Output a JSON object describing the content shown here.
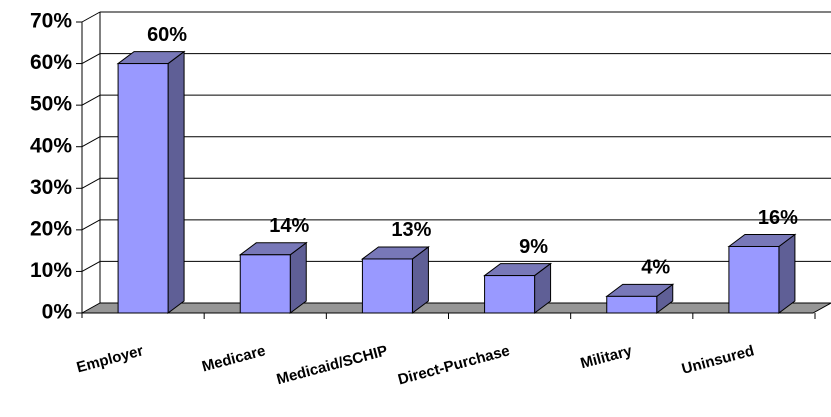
{
  "chart_data": {
    "type": "bar3d",
    "categories": [
      "Employer",
      "Medicare",
      "Medicaid/SCHIP",
      "Direct-Purchase",
      "Military",
      "Uninsured"
    ],
    "values": [
      60,
      14,
      13,
      9,
      4,
      16
    ],
    "value_labels": [
      "60%",
      "14%",
      "13%",
      "9%",
      "4%",
      "16%"
    ],
    "color": "#9999ff",
    "ylim": [
      0,
      70
    ],
    "yticks": [
      {
        "value": 0,
        "label": "0%"
      },
      {
        "value": 10,
        "label": "10%"
      },
      {
        "value": 20,
        "label": "20%"
      },
      {
        "value": 30,
        "label": "30%"
      },
      {
        "value": 40,
        "label": "40%"
      },
      {
        "value": 50,
        "label": "50%"
      },
      {
        "value": 60,
        "label": "60%"
      },
      {
        "value": 70,
        "label": "70%"
      }
    ],
    "grid": true
  }
}
